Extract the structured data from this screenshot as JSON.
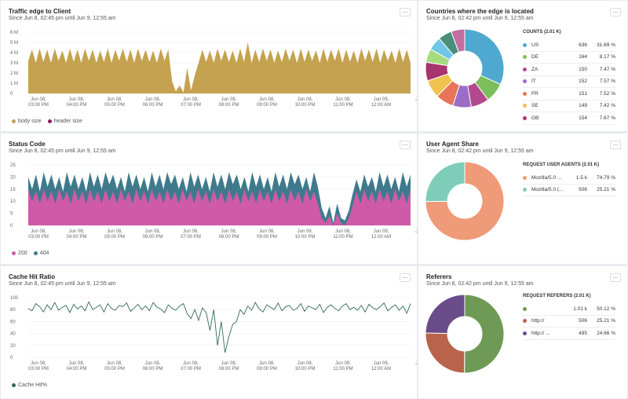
{
  "panels": {
    "traffic": {
      "title": "Traffic edge to Client",
      "subtitle": "Since Jun 8, 02:45 pm until Jun 9, 12:55 am",
      "menu": "...",
      "y_ticks": [
        "6 M",
        "5 M",
        "4 M",
        "3 M",
        "2 M",
        "1 M",
        "0"
      ],
      "legend": [
        {
          "label": "body size",
          "color": "#c5a24f"
        },
        {
          "label": "header size",
          "color": "#8e1a57"
        }
      ]
    },
    "status": {
      "title": "Status Code",
      "subtitle": "Since Jun 8, 02:45 pm until Jun 9, 12:55 am",
      "menu": "...",
      "y_ticks": [
        "25",
        "20",
        "15",
        "10",
        "5",
        "0"
      ],
      "legend": [
        {
          "label": "200",
          "color": "#cf5aa7"
        },
        {
          "label": "404",
          "color": "#3f7a8c"
        }
      ]
    },
    "cache": {
      "title": "Cache Hit Ratio",
      "subtitle": "Since Jun 8, 02:45 pm until Jun 9, 12:55 am",
      "menu": "...",
      "y_ticks": [
        "100",
        "80",
        "60",
        "40",
        "20",
        "0"
      ],
      "legend": [
        {
          "label": "Cache Hit%",
          "color": "#2f6b55"
        }
      ]
    },
    "countries": {
      "title": "Countries where the edge is located",
      "subtitle": "Since Jun 8, 02:42 pm until Jun 9, 12:55 am",
      "menu": "...",
      "table_title": "COUNTS (2.01 K)",
      "rows": [
        {
          "name": "US",
          "count": "636",
          "pct": "31.69 %",
          "color": "#4fa8cf"
        },
        {
          "name": "DE",
          "count": "164",
          "pct": "8.17 %",
          "color": "#7cbf5a"
        },
        {
          "name": "ZA",
          "count": "150",
          "pct": "7.47 %",
          "color": "#b3498f"
        },
        {
          "name": "IT",
          "count": "152",
          "pct": "7.57 %",
          "color": "#9b6dc6"
        },
        {
          "name": "FR",
          "count": "151",
          "pct": "7.52 %",
          "color": "#e8755a"
        },
        {
          "name": "SE",
          "count": "149",
          "pct": "7.42 %",
          "color": "#f0c24e"
        },
        {
          "name": "GB",
          "count": "154",
          "pct": "7.67 %",
          "color": "#a8346e"
        }
      ]
    },
    "agents": {
      "title": "User Agent Share",
      "subtitle": "Since Jun 8, 02:42 pm until Jun 9, 12:55 am",
      "menu": "...",
      "table_title": "REQUEST USER AGENTS (2.01 K)",
      "rows": [
        {
          "name": "Mozilla/5.0 ...",
          "count": "1.5 k",
          "pct": "74.79 %",
          "color": "#ef9a78"
        },
        {
          "name": "Mozilla/5.0 (...",
          "count": "506",
          "pct": "25.21 %",
          "color": "#7fcdb8"
        }
      ]
    },
    "referers": {
      "title": "Referers",
      "subtitle": "Since Jun 8, 02:42 pm until Jun 9, 12:55 am",
      "menu": "...",
      "table_title": "REQUEST REFERERS (2.01 K)",
      "rows": [
        {
          "name": "",
          "count": "1.01 k",
          "pct": "50.12 %",
          "color": "#6e9a55"
        },
        {
          "name": "http://",
          "count": "506",
          "pct": "25.21 %",
          "color": "#b9634a"
        },
        {
          "name": "http://          ...",
          "count": "495",
          "pct": "24.66 %",
          "color": "#6b4c8a"
        }
      ]
    }
  },
  "x_ticks": [
    [
      "Jun 08,",
      "03:00 PM"
    ],
    [
      "Jun 08,",
      "04:00 PM"
    ],
    [
      "Jun 08,",
      "05:00 PM"
    ],
    [
      "Jun 08,",
      "06:00 PM"
    ],
    [
      "Jun 08,",
      "07:00 PM"
    ],
    [
      "Jun 08,",
      "08:00 PM"
    ],
    [
      "Jun 08,",
      "09:00 PM"
    ],
    [
      "Jun 08,",
      "10:00 PM"
    ],
    [
      "Jun 08,",
      "11:00 PM"
    ],
    [
      "Jun 09,",
      "12:00 AM"
    ],
    [
      "Jun",
      "0"
    ]
  ],
  "chart_data": [
    {
      "type": "area",
      "title": "Traffic edge to Client",
      "ylim": [
        0,
        6000000
      ],
      "series": [
        {
          "name": "body size",
          "color": "#c5a24f",
          "values": [
            3.2,
            4.3,
            3.0,
            4.4,
            3.1,
            4.3,
            3.0,
            4.4,
            3.2,
            4.2,
            3.0,
            4.4,
            3.1,
            4.3,
            3.0,
            4.4,
            3.2,
            4.3,
            3.0,
            4.2,
            3.1,
            4.4,
            3.0,
            4.3,
            3.2,
            4.4,
            3.1,
            4.3,
            3.0,
            4.4,
            3.2,
            4.3,
            3.1,
            4.2,
            3.0,
            4.4,
            3.2,
            4.3,
            1.2,
            0.2,
            0.8,
            0.1,
            2.5,
            0.3,
            1.8,
            3.0,
            4.3,
            3.1,
            4.2,
            3.0,
            4.4,
            3.2,
            4.3,
            3.1,
            4.2,
            3.0,
            4.4,
            3.1,
            5.0,
            3.0,
            4.3,
            3.1,
            4.4,
            3.2,
            4.3,
            3.0,
            4.2,
            3.1,
            4.4,
            3.2,
            4.3,
            3.0,
            4.4,
            3.1,
            4.3,
            3.2,
            4.2,
            3.0,
            4.4,
            3.1,
            4.3,
            3.2,
            4.4,
            3.0,
            4.3,
            3.1,
            4.2,
            3.0,
            4.4,
            3.2,
            4.3,
            3.1,
            4.4,
            3.0,
            4.3,
            3.2,
            4.2,
            3.0,
            4.4,
            3.1,
            4.3,
            3.0
          ]
        },
        {
          "name": "header size",
          "color": "#8e1a57",
          "values": []
        }
      ]
    },
    {
      "type": "area",
      "title": "Status Code",
      "ylim": [
        0,
        25
      ],
      "series": [
        {
          "name": "200",
          "color": "#cf5aa7",
          "values": [
            15,
            10,
            14,
            9,
            15,
            10,
            14,
            9,
            15,
            10,
            14,
            9,
            15,
            10,
            14,
            9,
            15,
            10,
            14,
            9,
            15,
            10,
            14,
            9,
            15,
            10,
            14,
            9,
            15,
            10,
            14,
            9,
            15,
            10,
            14,
            9,
            15,
            10,
            14,
            9,
            15,
            10,
            14,
            9,
            15,
            10,
            14,
            9,
            15,
            10,
            14,
            9,
            15,
            10,
            14,
            9,
            15,
            10,
            14,
            9,
            15,
            10,
            14,
            9,
            15,
            10,
            14,
            9,
            15,
            10,
            14,
            9,
            15,
            10,
            14,
            9,
            3,
            1,
            4,
            0,
            5,
            1,
            0,
            3,
            8,
            14,
            9,
            15,
            10,
            14,
            9,
            15,
            10,
            14,
            9,
            15,
            10,
            14,
            9,
            15
          ]
        },
        {
          "name": "404",
          "color": "#3f7a8c",
          "values": [
            20,
            15,
            21,
            14,
            22,
            16,
            21,
            15,
            20,
            14,
            22,
            16,
            21,
            15,
            20,
            14,
            22,
            16,
            21,
            15,
            22,
            17,
            21,
            15,
            20,
            14,
            22,
            16,
            21,
            15,
            20,
            14,
            22,
            16,
            21,
            15,
            22,
            17,
            21,
            15,
            20,
            14,
            22,
            16,
            21,
            15,
            20,
            14,
            22,
            16,
            21,
            15,
            22,
            17,
            21,
            15,
            20,
            14,
            22,
            16,
            21,
            15,
            20,
            14,
            22,
            16,
            21,
            15,
            22,
            17,
            21,
            15,
            20,
            14,
            22,
            16,
            7,
            3,
            8,
            1,
            9,
            3,
            2,
            6,
            13,
            19,
            14,
            21,
            16,
            20,
            14,
            22,
            16,
            21,
            15,
            20,
            14,
            22,
            16,
            21
          ]
        }
      ]
    },
    {
      "type": "line",
      "title": "Cache Hit Ratio",
      "ylim": [
        0,
        100
      ],
      "series": [
        {
          "name": "Cache Hit%",
          "color": "#2f6b55",
          "values": [
            82,
            78,
            90,
            85,
            76,
            88,
            80,
            92,
            79,
            84,
            87,
            75,
            89,
            81,
            86,
            78,
            93,
            80,
            84,
            88,
            76,
            90,
            82,
            79,
            87,
            85,
            91,
            77,
            83,
            89,
            80,
            86,
            78,
            92,
            84,
            81,
            75,
            88,
            82,
            79,
            86,
            90,
            73,
            65,
            80,
            62,
            83,
            75,
            45,
            80,
            20,
            60,
            8,
            35,
            55,
            60,
            80,
            72,
            86,
            79,
            92,
            81,
            76,
            88,
            84,
            80,
            91,
            78,
            85,
            87,
            79,
            82,
            90,
            77,
            86,
            83,
            80,
            89,
            75,
            84,
            88,
            82,
            78,
            86,
            90,
            80,
            84,
            79,
            87,
            76,
            89,
            83,
            80,
            85,
            91,
            78,
            84,
            88,
            79,
            86,
            74,
            90
          ]
        }
      ]
    },
    {
      "type": "pie",
      "title": "Countries where the edge is located",
      "categories": [
        "US",
        "DE",
        "ZA",
        "IT",
        "FR",
        "SE",
        "GB"
      ],
      "values": [
        31.69,
        8.17,
        7.47,
        7.57,
        7.52,
        7.42,
        7.67
      ],
      "colors": [
        "#4fa8cf",
        "#7cbf5a",
        "#b3498f",
        "#9b6dc6",
        "#e8755a",
        "#f0c24e",
        "#a8346e"
      ],
      "rest_colors": [
        "#a6dc7e",
        "#6fc6e6",
        "#4a8f7c",
        "#c46e9f"
      ]
    },
    {
      "type": "pie",
      "title": "User Agent Share",
      "categories": [
        "Mozilla/5.0 ...",
        "Mozilla/5.0 (..."
      ],
      "values": [
        74.79,
        25.21
      ],
      "colors": [
        "#ef9a78",
        "#7fcdb8"
      ]
    },
    {
      "type": "pie",
      "title": "Referers",
      "categories": [
        "",
        "http://",
        "http://"
      ],
      "values": [
        50.12,
        25.21,
        24.66
      ],
      "colors": [
        "#6e9a55",
        "#b9634a",
        "#6b4c8a"
      ]
    }
  ]
}
